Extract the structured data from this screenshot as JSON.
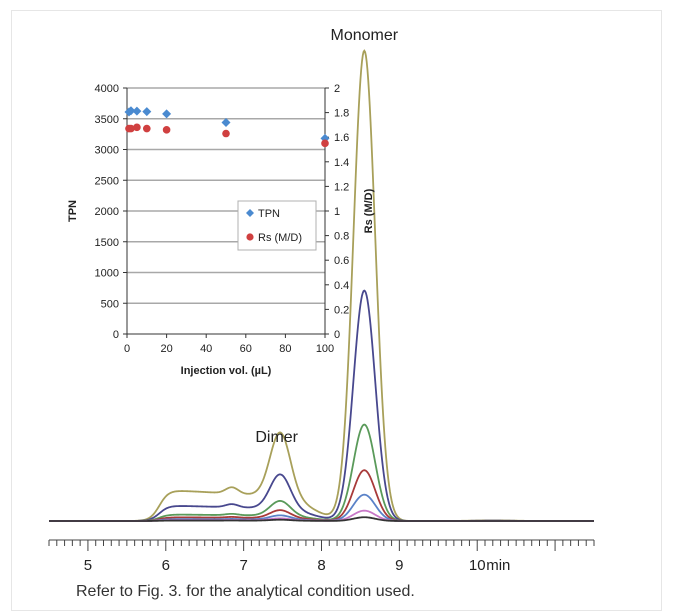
{
  "caption": "Refer to Fig. 3. for the analytical condition used.",
  "chart_data": [
    {
      "type": "line",
      "title": "",
      "xlabel": "",
      "x_unit_label": "min",
      "xlim": [
        4.5,
        11.5
      ],
      "x_ticks": [
        5,
        6,
        7,
        8,
        9,
        10
      ],
      "annotations": [
        {
          "text": "Monomer",
          "x": 8.55
        },
        {
          "text": "Dimer",
          "x": 7.45
        }
      ],
      "series": [
        {
          "color": "#a8a05a",
          "monomer_height": 1.0,
          "dimer_height": 0.138,
          "baseline_shoulder": 0.066
        },
        {
          "color": "#48488e",
          "monomer_height": 0.49,
          "dimer_height": 0.074,
          "baseline_shoulder": 0.033
        },
        {
          "color": "#5a9a5a",
          "monomer_height": 0.205,
          "dimer_height": 0.032,
          "baseline_shoulder": 0.014
        },
        {
          "color": "#a83a3a",
          "monomer_height": 0.108,
          "dimer_height": 0.017,
          "baseline_shoulder": 0.008
        },
        {
          "color": "#5a82c8",
          "monomer_height": 0.056,
          "dimer_height": 0.009,
          "baseline_shoulder": 0.004
        },
        {
          "color": "#c878c8",
          "monomer_height": 0.022,
          "dimer_height": 0.004,
          "baseline_shoulder": 0.002
        },
        {
          "color": "#333333",
          "monomer_height": 0.008,
          "dimer_height": 0.002,
          "baseline_shoulder": 0.001
        }
      ]
    },
    {
      "type": "scatter",
      "title": "",
      "xlabel": "Injection vol. (µL)",
      "ylabel": "TPN",
      "y2label": "Rs (M/D)",
      "xlim": [
        0,
        100
      ],
      "ylim": [
        0,
        4000
      ],
      "y2lim": [
        0,
        2
      ],
      "x_ticks": [
        0,
        20,
        40,
        60,
        80,
        100
      ],
      "y_ticks": [
        0,
        500,
        1000,
        1500,
        2000,
        2500,
        3000,
        3500,
        4000
      ],
      "y2_ticks": [
        "0",
        "0.2",
        "0.4",
        "0.6",
        "0.8",
        "1",
        "1.2",
        "1.4",
        "1.6",
        "1.8",
        "2"
      ],
      "grid": true,
      "legend_position": "center-right",
      "series": [
        {
          "name": "TPN",
          "axis": "left",
          "marker": "diamond",
          "color": "#4a8ad0",
          "x": [
            1,
            2,
            5,
            10,
            20,
            50,
            100
          ],
          "y": [
            3610,
            3630,
            3625,
            3615,
            3580,
            3440,
            3180
          ]
        },
        {
          "name": "Rs (M/D)",
          "axis": "right",
          "marker": "circle",
          "color": "#d04040",
          "x": [
            1,
            2,
            5,
            10,
            20,
            50,
            100
          ],
          "y": [
            1.67,
            1.67,
            1.68,
            1.67,
            1.66,
            1.63,
            1.55
          ]
        }
      ]
    }
  ]
}
